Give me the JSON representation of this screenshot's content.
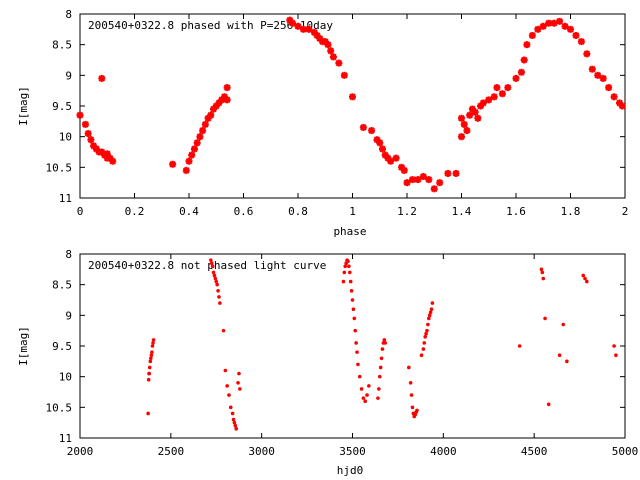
{
  "colors": {
    "marker": "#ff0000",
    "axis": "#000000"
  },
  "chart_data": [
    {
      "type": "scatter",
      "title": "200540+0322.8 phased with P=256.10day",
      "xlabel": "phase",
      "ylabel": "I[mag]",
      "xlim": [
        0,
        2
      ],
      "ylim": [
        8,
        11
      ],
      "y_reversed": true,
      "x_ticks": [
        0,
        0.2,
        0.4,
        0.6,
        0.8,
        1,
        1.2,
        1.4,
        1.6,
        1.8,
        2
      ],
      "x_tick_labels": [
        "0",
        "0.2",
        "0.4",
        "0.6",
        "0.8",
        "1",
        "1.2",
        "1.4",
        "1.6",
        "1.8",
        "2"
      ],
      "y_ticks": [
        8,
        8.5,
        9,
        9.5,
        10,
        10.5,
        11
      ],
      "y_tick_labels": [
        "8",
        "8.5",
        "9",
        "9.5",
        "10",
        "10.5",
        "11"
      ],
      "marker": "star",
      "grid": false,
      "x": [
        0.0,
        0.02,
        0.03,
        0.04,
        0.05,
        0.06,
        0.07,
        0.08,
        0.09,
        0.1,
        0.1,
        0.11,
        0.12,
        0.08,
        0.34,
        0.39,
        0.4,
        0.41,
        0.42,
        0.43,
        0.44,
        0.45,
        0.46,
        0.47,
        0.48,
        0.49,
        0.5,
        0.51,
        0.52,
        0.53,
        0.54,
        0.54,
        0.77,
        0.78,
        0.8,
        0.82,
        0.84,
        0.86,
        0.87,
        0.88,
        0.89,
        0.9,
        0.91,
        0.92,
        0.93,
        0.95,
        0.97,
        1.0,
        1.04,
        1.07,
        1.09,
        1.1,
        1.11,
        1.12,
        1.13,
        1.14,
        1.16,
        1.18,
        1.19,
        1.2,
        1.22,
        1.24,
        1.26,
        1.28,
        1.3,
        1.32,
        1.35,
        1.38,
        1.4,
        1.4,
        1.41,
        1.42,
        1.43,
        1.44,
        1.45,
        1.46,
        1.47,
        1.48,
        1.5,
        1.52,
        1.53,
        1.55,
        1.57,
        1.6,
        1.62,
        1.63,
        1.64,
        1.66,
        1.68,
        1.7,
        1.72,
        1.74,
        1.76,
        1.78,
        1.8,
        1.82,
        1.84,
        1.86,
        1.88,
        1.9,
        1.92,
        1.94,
        1.96,
        1.98,
        1.99
      ],
      "y": [
        9.65,
        9.8,
        9.95,
        10.05,
        10.15,
        10.2,
        10.25,
        10.25,
        10.3,
        10.35,
        10.28,
        10.35,
        10.4,
        9.05,
        10.45,
        10.55,
        10.4,
        10.3,
        10.2,
        10.1,
        10.0,
        9.9,
        9.8,
        9.7,
        9.65,
        9.55,
        9.5,
        9.45,
        9.4,
        9.35,
        9.2,
        9.4,
        8.1,
        8.15,
        8.2,
        8.25,
        8.25,
        8.3,
        8.35,
        8.4,
        8.45,
        8.45,
        8.5,
        8.6,
        8.7,
        8.8,
        9.0,
        9.35,
        9.85,
        9.9,
        10.05,
        10.1,
        10.2,
        10.3,
        10.35,
        10.4,
        10.35,
        10.5,
        10.55,
        10.75,
        10.7,
        10.7,
        10.65,
        10.7,
        10.85,
        10.75,
        10.6,
        10.6,
        10.0,
        9.7,
        9.8,
        9.9,
        9.65,
        9.55,
        9.6,
        9.7,
        9.5,
        9.45,
        9.4,
        9.35,
        9.2,
        9.3,
        9.2,
        9.05,
        8.95,
        8.75,
        8.5,
        8.35,
        8.25,
        8.2,
        8.15,
        8.15,
        8.12,
        8.2,
        8.25,
        8.35,
        8.45,
        8.65,
        8.9,
        9.0,
        9.05,
        9.2,
        9.35,
        9.45,
        9.5
      ]
    },
    {
      "type": "scatter",
      "title": "200540+0322.8 not phased light curve",
      "xlabel": "hjd0",
      "ylabel": "I[mag]",
      "xlim": [
        2000,
        5000
      ],
      "ylim": [
        8,
        11
      ],
      "y_reversed": true,
      "x_ticks": [
        2000,
        2500,
        3000,
        3500,
        4000,
        4500,
        5000
      ],
      "x_tick_labels": [
        "2000",
        "2500",
        "3000",
        "3500",
        "4000",
        "4500",
        "5000"
      ],
      "y_ticks": [
        8,
        8.5,
        9,
        9.5,
        10,
        10.5,
        11
      ],
      "y_tick_labels": [
        "8",
        "8.5",
        "9",
        "9.5",
        "10",
        "10.5",
        "11"
      ],
      "marker": "dot",
      "grid": false,
      "x": [
        2375,
        2378,
        2381,
        2384,
        2387,
        2390,
        2393,
        2396,
        2399,
        2402,
        2405,
        2380,
        2720,
        2725,
        2730,
        2735,
        2740,
        2745,
        2750,
        2755,
        2760,
        2765,
        2770,
        2790,
        2800,
        2810,
        2820,
        2830,
        2840,
        2845,
        2850,
        2855,
        2860,
        2870,
        2875,
        2880,
        3450,
        3455,
        3460,
        3465,
        3470,
        3475,
        3480,
        3485,
        3490,
        3495,
        3500,
        3505,
        3510,
        3515,
        3520,
        3525,
        3530,
        3540,
        3550,
        3560,
        3570,
        3580,
        3590,
        3640,
        3645,
        3650,
        3655,
        3660,
        3665,
        3670,
        3675,
        3680,
        3810,
        3820,
        3825,
        3830,
        3835,
        3840,
        3845,
        3850,
        3855,
        3880,
        3890,
        3895,
        3900,
        3905,
        3910,
        3915,
        3920,
        3925,
        3930,
        3935,
        3940,
        4420,
        4540,
        4545,
        4550,
        4560,
        4580,
        4640,
        4660,
        4680,
        4770,
        4780,
        4790,
        4940,
        4950
      ],
      "y": [
        10.6,
        10.05,
        9.95,
        9.85,
        9.75,
        9.7,
        9.65,
        9.6,
        9.5,
        9.45,
        9.4,
        9.95,
        8.1,
        8.15,
        8.2,
        8.3,
        8.35,
        8.4,
        8.45,
        8.5,
        8.6,
        8.7,
        8.8,
        9.25,
        9.9,
        10.15,
        10.3,
        10.5,
        10.6,
        10.7,
        10.75,
        10.8,
        10.85,
        10.1,
        9.95,
        10.2,
        8.45,
        8.3,
        8.2,
        8.15,
        8.1,
        8.12,
        8.2,
        8.3,
        8.45,
        8.6,
        8.75,
        8.9,
        9.05,
        9.25,
        9.45,
        9.6,
        9.8,
        10.0,
        10.2,
        10.35,
        10.4,
        10.3,
        10.15,
        10.35,
        10.2,
        10.0,
        9.85,
        9.7,
        9.55,
        9.45,
        9.4,
        9.45,
        9.85,
        10.1,
        10.3,
        10.5,
        10.6,
        10.65,
        10.62,
        10.58,
        10.55,
        9.65,
        9.55,
        9.45,
        9.35,
        9.3,
        9.25,
        9.15,
        9.05,
        9.0,
        8.95,
        8.9,
        8.8,
        9.5,
        8.25,
        8.3,
        8.4,
        9.05,
        10.45,
        9.65,
        9.15,
        9.75,
        8.35,
        8.4,
        8.45,
        9.5,
        9.65
      ]
    }
  ]
}
